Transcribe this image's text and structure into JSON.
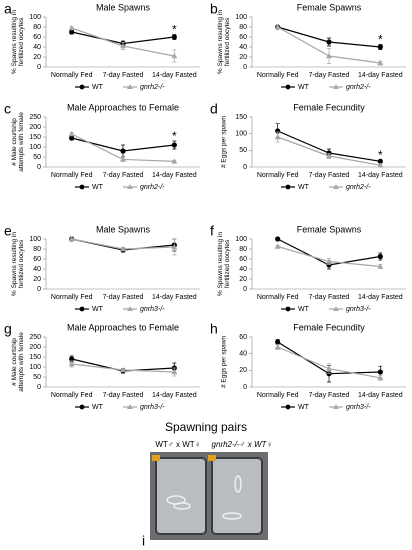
{
  "chart_data": [
    {
      "type": "line",
      "panel": "a",
      "title": "Male Spawns",
      "ylabel": [
        "% Spawns resulting in",
        "fertilized oocytes"
      ],
      "categories": [
        "Normally Fed",
        "7-day Fasted",
        "14-day Fasted"
      ],
      "ylim": [
        0,
        100
      ],
      "yticks": [
        0,
        20,
        40,
        60,
        80,
        100
      ],
      "series": [
        {
          "name": "WT",
          "color": "#000000",
          "values": [
            70,
            47,
            60
          ],
          "errors": [
            4,
            5,
            5
          ]
        },
        {
          "name": "gnrh2-/-",
          "color": "#a6a6a6",
          "values": [
            78,
            42,
            22
          ],
          "errors": [
            3,
            7,
            12
          ]
        }
      ],
      "annotations": [
        {
          "text": "*",
          "x": "14-day Fasted"
        }
      ]
    },
    {
      "type": "line",
      "panel": "b",
      "title": "Female Spawns",
      "ylabel": [
        "% Spawns resulting in",
        "fertilized oocytes"
      ],
      "categories": [
        "Normally Fed",
        "7-day Fasted",
        "14-day Fasted"
      ],
      "ylim": [
        0,
        100
      ],
      "yticks": [
        0,
        20,
        40,
        60,
        80,
        100
      ],
      "series": [
        {
          "name": "WT",
          "color": "#000000",
          "values": [
            80,
            50,
            40
          ],
          "errors": [
            2,
            8,
            5
          ]
        },
        {
          "name": "gnrh2-/-",
          "color": "#a6a6a6",
          "values": [
            80,
            22,
            8
          ],
          "errors": [
            2,
            15,
            4
          ]
        }
      ],
      "annotations": [
        {
          "text": "*",
          "x": "14-day Fasted"
        }
      ]
    },
    {
      "type": "line",
      "panel": "c",
      "title": "Male Approaches to Female",
      "ylabel": [
        "# Male courtship",
        "attempts with female"
      ],
      "categories": [
        "Normally Fed",
        "7-day Fasted",
        "14-day Fasted"
      ],
      "ylim": [
        0,
        250
      ],
      "yticks": [
        0,
        50,
        100,
        150,
        200,
        250
      ],
      "series": [
        {
          "name": "WT",
          "color": "#000000",
          "values": [
            145,
            80,
            110
          ],
          "errors": [
            10,
            30,
            20
          ]
        },
        {
          "name": "gnrh2-/-",
          "color": "#a6a6a6",
          "values": [
            165,
            38,
            28
          ],
          "errors": [
            8,
            10,
            5
          ]
        }
      ],
      "annotations": [
        {
          "text": "*",
          "x": "14-day Fasted"
        }
      ]
    },
    {
      "type": "line",
      "panel": "d",
      "title": "Female Fecundity",
      "ylabel": [
        "# Eggs per spawn"
      ],
      "categories": [
        "Normally Fed",
        "7-day Fasted",
        "14-day Fasted"
      ],
      "ylim": [
        0,
        150
      ],
      "yticks": [
        0,
        50,
        100,
        150
      ],
      "series": [
        {
          "name": "WT",
          "color": "#000000",
          "values": [
            108,
            42,
            17
          ],
          "errors": [
            22,
            12,
            4
          ]
        },
        {
          "name": "gnrh2-/-",
          "color": "#a6a6a6",
          "values": [
            90,
            33,
            5
          ],
          "errors": [
            15,
            8,
            3
          ]
        }
      ],
      "annotations": [
        {
          "text": "*",
          "x": "14-day Fasted"
        }
      ]
    },
    {
      "type": "line",
      "panel": "e",
      "title": "Male Spawns",
      "ylabel": [
        "% Spawns resulting in",
        "fertilized oocytes"
      ],
      "categories": [
        "Normally Fed",
        "7-day Fasted",
        "14-day Fasted"
      ],
      "ylim": [
        0,
        100
      ],
      "yticks": [
        0,
        20,
        40,
        60,
        80,
        100
      ],
      "series": [
        {
          "name": "WT",
          "color": "#000000",
          "values": [
            100,
            78,
            88
          ],
          "errors": [
            1,
            4,
            12
          ]
        },
        {
          "name": "gnrh3-/-",
          "color": "#a6a6a6",
          "values": [
            100,
            80,
            84
          ],
          "errors": [
            1,
            3,
            16
          ]
        }
      ],
      "annotations": []
    },
    {
      "type": "line",
      "panel": "f",
      "title": "Female Spawns",
      "ylabel": [
        "% Spawns resulting in",
        "fertilized oocytes"
      ],
      "categories": [
        "Normally Fed",
        "7-day Fasted",
        "14-day Fasted"
      ],
      "ylim": [
        0,
        100
      ],
      "yticks": [
        0,
        20,
        40,
        60,
        80,
        100
      ],
      "series": [
        {
          "name": "WT",
          "color": "#000000",
          "values": [
            100,
            48,
            65
          ],
          "errors": [
            1,
            8,
            7
          ]
        },
        {
          "name": "gnrh3-/-",
          "color": "#a6a6a6",
          "values": [
            85,
            55,
            45
          ],
          "errors": [
            2,
            6,
            4
          ]
        }
      ],
      "annotations": []
    },
    {
      "type": "line",
      "panel": "g",
      "title": "Male Approaches to Female",
      "ylabel": [
        "# Male courtship",
        "attempts with female"
      ],
      "categories": [
        "Normally Fed",
        "7-day Fasted",
        "14-day Fasted"
      ],
      "ylim": [
        0,
        250
      ],
      "yticks": [
        0,
        50,
        100,
        150,
        200,
        250
      ],
      "series": [
        {
          "name": "WT",
          "color": "#000000",
          "values": [
            140,
            80,
            95
          ],
          "errors": [
            15,
            10,
            25
          ]
        },
        {
          "name": "gnrh3-/-",
          "color": "#a6a6a6",
          "values": [
            115,
            85,
            75
          ],
          "errors": [
            15,
            8,
            20
          ]
        }
      ],
      "annotations": []
    },
    {
      "type": "line",
      "panel": "h",
      "title": "Female Fecundity",
      "ylabel": [
        "# Eggs per spawn"
      ],
      "categories": [
        "Normally Fed",
        "7-day Fasted",
        "14-day Fasted"
      ],
      "ylim": [
        0,
        60
      ],
      "yticks": [
        0,
        20,
        40,
        60
      ],
      "series": [
        {
          "name": "WT",
          "color": "#000000",
          "values": [
            54,
            16,
            18
          ],
          "errors": [
            3,
            10,
            7
          ]
        },
        {
          "name": "gnrh3-/-",
          "color": "#a6a6a6",
          "values": [
            48,
            22,
            11
          ],
          "errors": [
            3,
            6,
            3
          ]
        }
      ],
      "annotations": []
    }
  ],
  "photo_panel": {
    "label": "i",
    "title": "Spawning pairs",
    "captions": [
      "WT♂ x WT♀",
      "gnrh2-/-♂ x WT♀"
    ]
  }
}
